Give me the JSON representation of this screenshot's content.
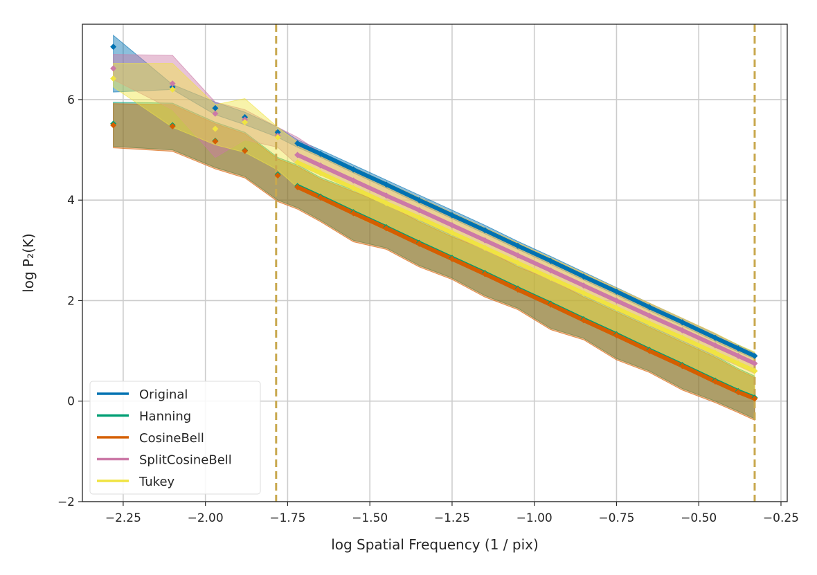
{
  "chart_data": {
    "type": "line",
    "title": "",
    "xlabel": "log Spatial Frequency (1 / pix)",
    "ylabel": "log P₂(K)",
    "xlim": [
      -2.374,
      -0.231
    ],
    "ylim": [
      -2,
      7.5
    ],
    "xticks": [
      -2.25,
      -2.0,
      -1.75,
      -1.5,
      -1.25,
      -1.0,
      -0.75,
      -0.5,
      -0.25
    ],
    "xtick_labels": [
      "−2.25",
      "−2.00",
      "−1.75",
      "−1.50",
      "−1.25",
      "−1.00",
      "−0.75",
      "−0.50",
      "−0.25"
    ],
    "yticks": [
      -2,
      0,
      2,
      4,
      6
    ],
    "ytick_labels": [
      "−2",
      "0",
      "2",
      "4",
      "6"
    ],
    "grid": true,
    "legend_placement": "lower-left",
    "vertical_dashed_lines": {
      "x": [
        -1.785,
        -0.33
      ],
      "color": "#C8A84E"
    },
    "fit_start_x": -1.72,
    "x": [
      -2.28,
      -2.1,
      -1.97,
      -1.88,
      -1.78,
      -1.72,
      -1.65,
      -1.55,
      -1.45,
      -1.35,
      -1.25,
      -1.15,
      -1.05,
      -0.95,
      -0.85,
      -0.75,
      -0.65,
      -0.55,
      -0.45,
      -0.38,
      -0.33
    ],
    "series": [
      {
        "name": "Original",
        "color": "#0072B2",
        "values": [
          7.05,
          6.25,
          5.83,
          5.65,
          5.35,
          5.13,
          4.92,
          4.61,
          4.31,
          4.0,
          3.7,
          3.4,
          3.09,
          2.79,
          2.48,
          2.18,
          1.87,
          1.57,
          1.26,
          1.05,
          0.9
        ],
        "lower": [
          6.15,
          6.2,
          5.7,
          5.5,
          5.25,
          5.05,
          4.85,
          4.54,
          4.24,
          3.93,
          3.63,
          3.33,
          3.02,
          2.72,
          2.41,
          2.11,
          1.8,
          1.5,
          1.19,
          0.98,
          0.84
        ],
        "upper": [
          7.28,
          6.3,
          5.95,
          5.75,
          5.45,
          5.2,
          5.0,
          4.7,
          4.4,
          4.1,
          3.8,
          3.5,
          3.18,
          2.88,
          2.57,
          2.26,
          1.95,
          1.65,
          1.34,
          1.12,
          0.96
        ]
      },
      {
        "name": "Hanning",
        "color": "#009E73",
        "values": [
          5.52,
          5.49,
          5.18,
          4.99,
          4.51,
          4.28,
          4.07,
          3.76,
          3.46,
          3.15,
          2.85,
          2.55,
          2.24,
          1.94,
          1.63,
          1.33,
          1.02,
          0.72,
          0.41,
          0.2,
          0.07
        ],
        "lower": [
          5.07,
          5.0,
          4.65,
          4.47,
          4.0,
          3.85,
          3.6,
          3.2,
          3.05,
          2.7,
          2.45,
          2.1,
          1.85,
          1.45,
          1.25,
          0.85,
          0.6,
          0.25,
          0.0,
          -0.2,
          -0.35
        ],
        "upper": [
          5.95,
          5.93,
          5.55,
          5.35,
          4.85,
          4.7,
          4.45,
          4.2,
          3.95,
          3.6,
          3.3,
          3.05,
          2.7,
          2.45,
          2.1,
          1.8,
          1.5,
          1.2,
          0.9,
          0.65,
          0.5
        ]
      },
      {
        "name": "CosineBell",
        "color": "#D55E00",
        "values": [
          5.49,
          5.47,
          5.17,
          4.98,
          4.49,
          4.26,
          4.05,
          3.74,
          3.44,
          3.13,
          2.83,
          2.53,
          2.22,
          1.92,
          1.61,
          1.31,
          1.0,
          0.7,
          0.39,
          0.18,
          0.05
        ],
        "lower": [
          5.04,
          4.97,
          4.62,
          4.44,
          3.97,
          3.82,
          3.57,
          3.17,
          3.02,
          2.67,
          2.42,
          2.07,
          1.82,
          1.42,
          1.22,
          0.82,
          0.57,
          0.22,
          -0.03,
          -0.23,
          -0.38
        ],
        "upper": [
          5.92,
          5.9,
          5.52,
          5.32,
          4.82,
          4.67,
          4.42,
          4.17,
          3.92,
          3.57,
          3.27,
          3.02,
          2.67,
          2.42,
          2.07,
          1.77,
          1.47,
          1.17,
          0.87,
          0.62,
          0.47
        ]
      },
      {
        "name": "SplitCosineBell",
        "color": "#CC79A7",
        "values": [
          6.62,
          6.32,
          5.72,
          5.6,
          5.28,
          4.9,
          4.69,
          4.39,
          4.09,
          3.8,
          3.5,
          3.2,
          2.9,
          2.6,
          2.3,
          2.0,
          1.7,
          1.41,
          1.11,
          0.9,
          0.75
        ],
        "lower": [
          6.4,
          5.8,
          4.85,
          5.2,
          5.05,
          4.7,
          4.5,
          4.2,
          3.9,
          3.6,
          3.3,
          3.0,
          2.7,
          2.4,
          2.1,
          1.8,
          1.5,
          1.2,
          0.9,
          0.7,
          0.55
        ],
        "upper": [
          6.9,
          6.88,
          5.95,
          5.8,
          5.45,
          5.25,
          4.95,
          4.65,
          4.35,
          4.05,
          3.75,
          3.45,
          3.15,
          2.85,
          2.55,
          2.25,
          1.95,
          1.65,
          1.35,
          1.1,
          0.95
        ]
      },
      {
        "name": "Tukey",
        "color": "#F0E442",
        "values": [
          6.42,
          6.2,
          5.42,
          5.55,
          5.25,
          4.75,
          4.54,
          4.24,
          3.94,
          3.65,
          3.35,
          3.05,
          2.75,
          2.45,
          2.15,
          1.85,
          1.55,
          1.26,
          0.96,
          0.75,
          0.6
        ],
        "lower": [
          6.25,
          5.45,
          5.1,
          4.95,
          4.6,
          4.25,
          4.05,
          3.7,
          3.4,
          3.1,
          2.8,
          2.5,
          2.2,
          1.9,
          1.6,
          1.3,
          1.0,
          0.7,
          0.4,
          0.2,
          0.05
        ],
        "upper": [
          6.72,
          6.72,
          5.9,
          6.02,
          5.45,
          5.15,
          4.95,
          4.65,
          4.35,
          4.05,
          3.75,
          3.45,
          3.15,
          2.85,
          2.55,
          2.25,
          1.95,
          1.65,
          1.35,
          1.12,
          0.98
        ]
      }
    ]
  }
}
